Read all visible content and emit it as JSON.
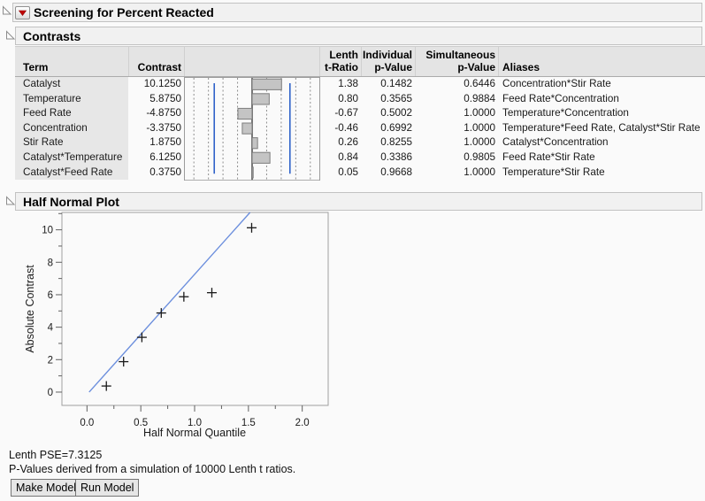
{
  "report": {
    "title": "Screening for Percent Reacted"
  },
  "sections": {
    "contrasts": {
      "title": "Contrasts"
    },
    "half_normal": {
      "title": "Half Normal Plot"
    }
  },
  "contrasts_table": {
    "headers": {
      "term": "Term",
      "contrast": "Contrast",
      "lenth_t_ratio": "Lenth\nt-Ratio",
      "individual_p": "Individual\np-Value",
      "simultaneous_p": "Simultaneous\np-Value",
      "aliases": "Aliases"
    },
    "rows": [
      {
        "term": "Catalyst",
        "contrast": "10.1250",
        "t_ratio": "1.38",
        "individual_p": "0.1482",
        "simultaneous_p": "0.6446",
        "aliases": "Concentration*Stir Rate"
      },
      {
        "term": "Temperature",
        "contrast": "5.8750",
        "t_ratio": "0.80",
        "individual_p": "0.3565",
        "simultaneous_p": "0.9884",
        "aliases": "Feed Rate*Concentration"
      },
      {
        "term": "Feed Rate",
        "contrast": "-4.8750",
        "t_ratio": "-0.67",
        "individual_p": "0.5002",
        "simultaneous_p": "1.0000",
        "aliases": "Temperature*Concentration"
      },
      {
        "term": "Concentration",
        "contrast": "-3.3750",
        "t_ratio": "-0.46",
        "individual_p": "0.6992",
        "simultaneous_p": "1.0000",
        "aliases": "Temperature*Feed Rate, Catalyst*Stir Rate"
      },
      {
        "term": "Stir Rate",
        "contrast": "1.8750",
        "t_ratio": "0.26",
        "individual_p": "0.8255",
        "simultaneous_p": "1.0000",
        "aliases": "Catalyst*Concentration"
      },
      {
        "term": "Catalyst*Temperature",
        "contrast": "6.1250",
        "t_ratio": "0.84",
        "individual_p": "0.3386",
        "simultaneous_p": "0.9805",
        "aliases": "Feed Rate*Stir Rate"
      },
      {
        "term": "Catalyst*Feed Rate",
        "contrast": "0.3750",
        "t_ratio": "0.05",
        "individual_p": "0.9668",
        "simultaneous_p": "1.0000",
        "aliases": "Temperature*Stir Rate"
      }
    ]
  },
  "chart_data": [
    {
      "type": "bar",
      "orientation": "horizontal",
      "title": "Contrast column bar chart",
      "categories": [
        "Catalyst",
        "Temperature",
        "Feed Rate",
        "Concentration",
        "Stir Rate",
        "Catalyst*Temperature",
        "Catalyst*Feed Rate"
      ],
      "values": [
        10.125,
        5.875,
        -4.875,
        -3.375,
        1.875,
        6.125,
        0.375
      ],
      "xlim": [
        -23.4,
        23.4
      ],
      "gridline_step": 5,
      "zero_line": true,
      "reference_lines": [
        -13,
        13
      ],
      "colors": {
        "bar_fill": "#c4c4c4",
        "bar_border": "#7e7e7e",
        "grid": "#8f8f8f",
        "zero": "#777777",
        "reference": "#2f62c9",
        "frame": "#9c9c9c"
      }
    },
    {
      "type": "scatter",
      "title": "Half Normal Plot",
      "xlabel": "Half Normal Quantile",
      "ylabel": "Absolute Contrast",
      "x": [
        0.18,
        0.34,
        0.51,
        0.69,
        0.9,
        1.16,
        1.53
      ],
      "y": [
        0.375,
        1.875,
        3.375,
        4.875,
        5.875,
        6.125,
        10.125
      ],
      "xlim": [
        -0.233,
        2.241
      ],
      "ylim": [
        -0.82,
        11.07
      ],
      "xticks": {
        "major": [
          0,
          0.5,
          1,
          1.5,
          2
        ],
        "labels": [
          "0.0",
          "0.5",
          "1.0",
          "1.5",
          "2.0"
        ],
        "minor": [
          0.25,
          0.75,
          1.25,
          1.75
        ]
      },
      "yticks": {
        "major": [
          0,
          2,
          4,
          6,
          8,
          10
        ],
        "labels": [
          "0",
          "2",
          "4",
          "6",
          "8",
          "10"
        ],
        "minor": [
          1,
          3,
          5,
          7,
          9,
          11
        ]
      },
      "fit_line": {
        "x1": 0.02,
        "y1": 0.0,
        "x2": 1.515,
        "y2": 11.07,
        "color": "#6c8fdd"
      },
      "marker": "plus",
      "marker_color": "#1a1a1a",
      "frame_color": "#a0a0a0",
      "grid": false,
      "legend": "none"
    }
  ],
  "footer": {
    "lenth_pse": "Lenth PSE=7.3125",
    "pvalue_note": "P-Values derived from a simulation of 10000 Lenth t ratios.",
    "make_model_label": "Make Model",
    "run_model_label": "Run Model"
  }
}
